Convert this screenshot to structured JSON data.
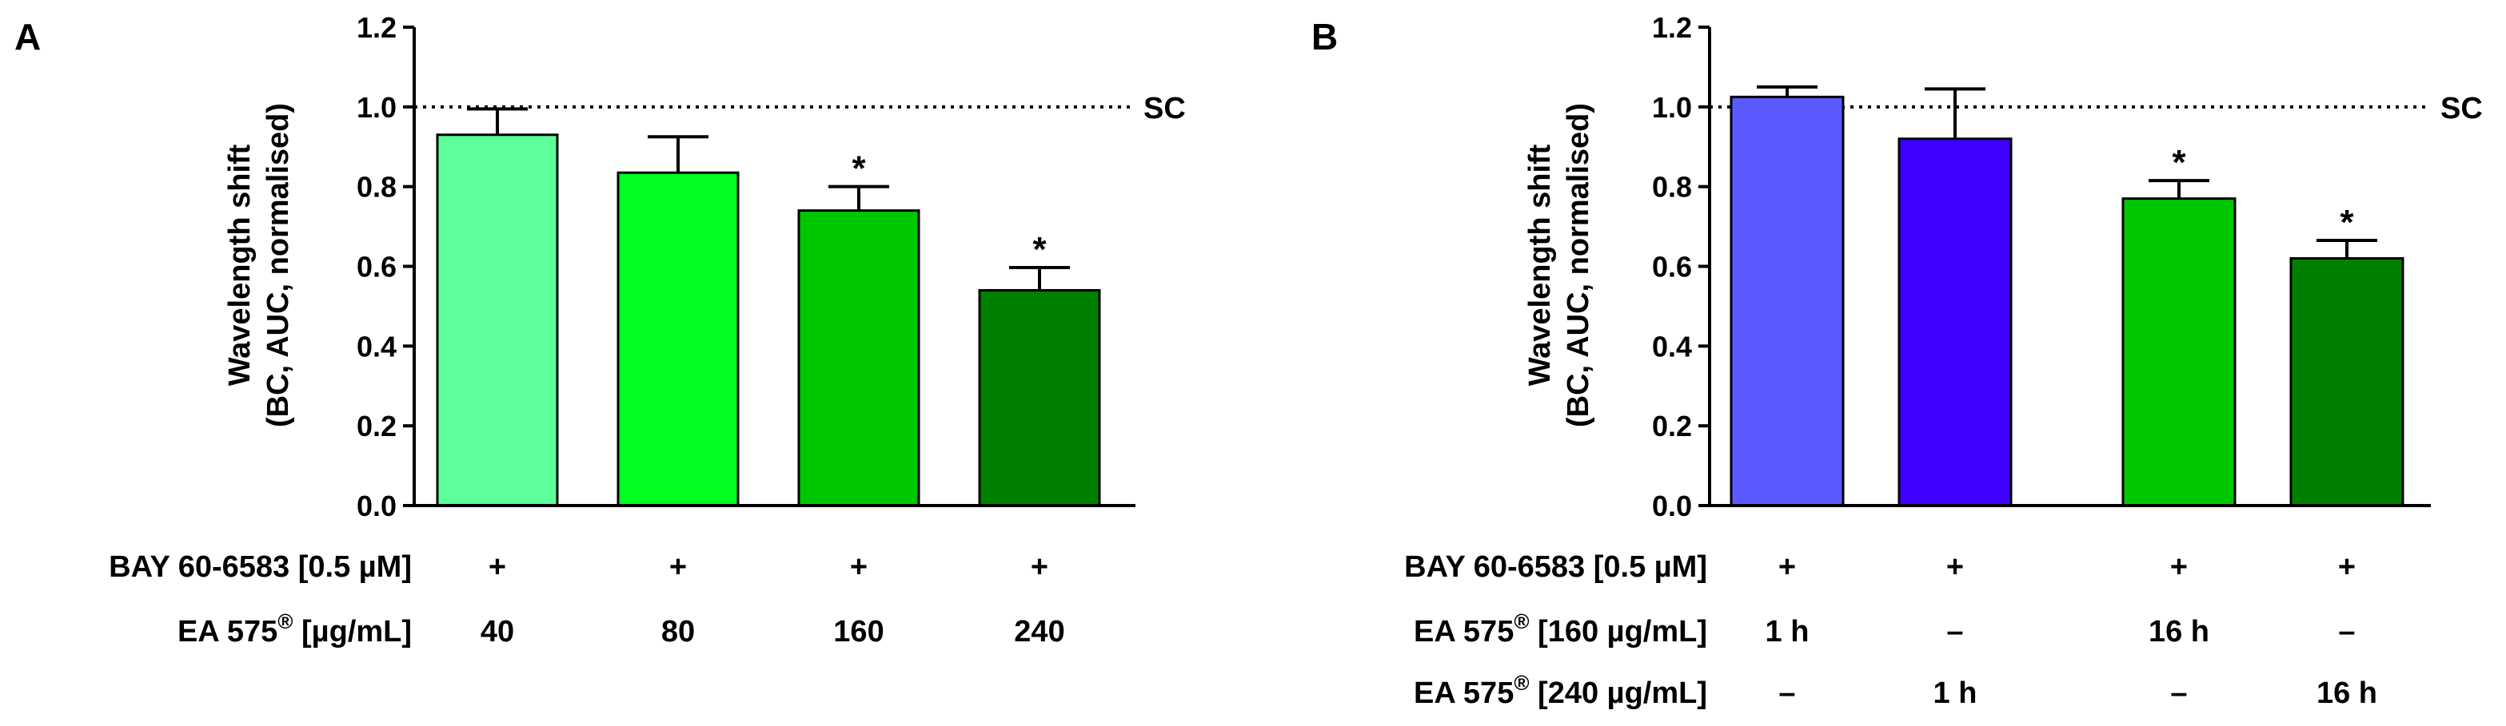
{
  "figure": {
    "colors": {
      "axis": "#000000",
      "reference_line": "#000000",
      "error_bar": "#000000",
      "bar_outline": "#000000"
    }
  },
  "chart_data": [
    {
      "panel_label": "A",
      "type": "bar",
      "ylabel_line1": "Wavelength shift",
      "ylabel_line2": "(BC, AUC, normalised)",
      "ylim": [
        0,
        1.2
      ],
      "yticks": [
        "0.0",
        "0.2",
        "0.4",
        "0.6",
        "0.8",
        "1.0",
        "1.2"
      ],
      "reference_line": {
        "value": 1.0,
        "label": "SC",
        "style": "dotted"
      },
      "bars": [
        {
          "value": 0.93,
          "error": 0.065,
          "color": "#5cff99",
          "significant": false
        },
        {
          "value": 0.835,
          "error": 0.09,
          "color": "#00ff20",
          "significant": false
        },
        {
          "value": 0.74,
          "error": 0.06,
          "color": "#00c800",
          "significant": true
        },
        {
          "value": 0.54,
          "error": 0.057,
          "color": "#008000",
          "significant": true
        }
      ],
      "significance_marker": "*",
      "conditions": [
        {
          "label": "BAY 60-6583 [0.5 µM]",
          "label_sup": "",
          "label_suffix": "",
          "values": [
            "+",
            "+",
            "+",
            "+"
          ]
        },
        {
          "label": "EA 575",
          "label_sup": "®",
          "label_suffix": " [µg/mL]",
          "values": [
            "40",
            "80",
            "160",
            "240"
          ]
        }
      ]
    },
    {
      "panel_label": "B",
      "type": "bar",
      "ylabel_line1": "Wavelength shift",
      "ylabel_line2": "(BC, AUC, normalised)",
      "ylim": [
        0,
        1.2
      ],
      "yticks": [
        "0.0",
        "0.2",
        "0.4",
        "0.6",
        "0.8",
        "1.0",
        "1.2"
      ],
      "reference_line": {
        "value": 1.0,
        "label": "SC",
        "style": "dotted"
      },
      "bars": [
        {
          "value": 1.025,
          "error": 0.025,
          "color": "#5a5aff",
          "significant": false
        },
        {
          "value": 0.92,
          "error": 0.125,
          "color": "#4000ff",
          "significant": false
        },
        {
          "value": 0.77,
          "error": 0.045,
          "color": "#00c800",
          "significant": true
        },
        {
          "value": 0.62,
          "error": 0.045,
          "color": "#008000",
          "significant": true
        }
      ],
      "significance_marker": "*",
      "conditions": [
        {
          "label": "BAY 60-6583 [0.5 µM]",
          "label_sup": "",
          "label_suffix": "",
          "values": [
            "+",
            "+",
            "+",
            "+"
          ]
        },
        {
          "label": "EA 575",
          "label_sup": "®",
          "label_suffix": " [160 µg/mL]",
          "values": [
            "1 h",
            "–",
            "16 h",
            "–"
          ]
        },
        {
          "label": "EA 575",
          "label_sup": "®",
          "label_suffix": " [240 µg/mL]",
          "values": [
            "–",
            "1 h",
            "–",
            "16 h"
          ]
        }
      ]
    }
  ]
}
